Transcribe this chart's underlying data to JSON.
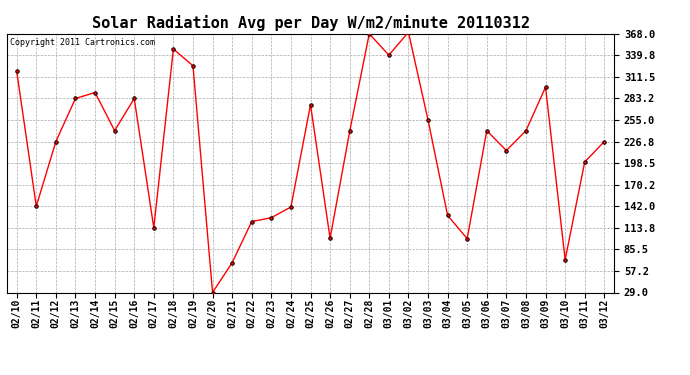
{
  "title": "Solar Radiation Avg per Day W/m2/minute 20110312",
  "copyright": "Copyright 2011 Cartronics.com",
  "x_labels": [
    "02/10",
    "02/11",
    "02/12",
    "02/13",
    "02/14",
    "02/15",
    "02/16",
    "02/17",
    "02/18",
    "02/19",
    "02/20",
    "02/21",
    "02/22",
    "02/23",
    "02/24",
    "02/25",
    "02/26",
    "02/27",
    "02/28",
    "03/01",
    "03/02",
    "03/03",
    "03/04",
    "03/05",
    "03/06",
    "03/07",
    "03/08",
    "03/09",
    "03/10",
    "03/11",
    "03/12"
  ],
  "values": [
    319.0,
    142.0,
    226.8,
    283.2,
    291.0,
    241.0,
    283.2,
    113.8,
    348.0,
    326.0,
    29.0,
    68.0,
    122.0,
    127.0,
    141.0,
    275.0,
    100.0,
    240.0,
    368.0,
    340.0,
    370.0,
    255.0,
    130.0,
    99.5,
    241.0,
    215.0,
    241.0,
    298.0,
    72.0,
    200.0,
    226.8
  ],
  "line_color": "#ff0000",
  "marker": "o",
  "marker_size": 3,
  "marker_color": "#000000",
  "ylim": [
    29.0,
    368.0
  ],
  "yticks": [
    29.0,
    57.2,
    85.5,
    113.8,
    142.0,
    170.2,
    198.5,
    226.8,
    255.0,
    283.2,
    311.5,
    339.8,
    368.0
  ],
  "bg_color": "#ffffff",
  "grid_color": "#aaaaaa",
  "title_fontsize": 11,
  "tick_fontsize": 7,
  "copyright_fontsize": 6
}
